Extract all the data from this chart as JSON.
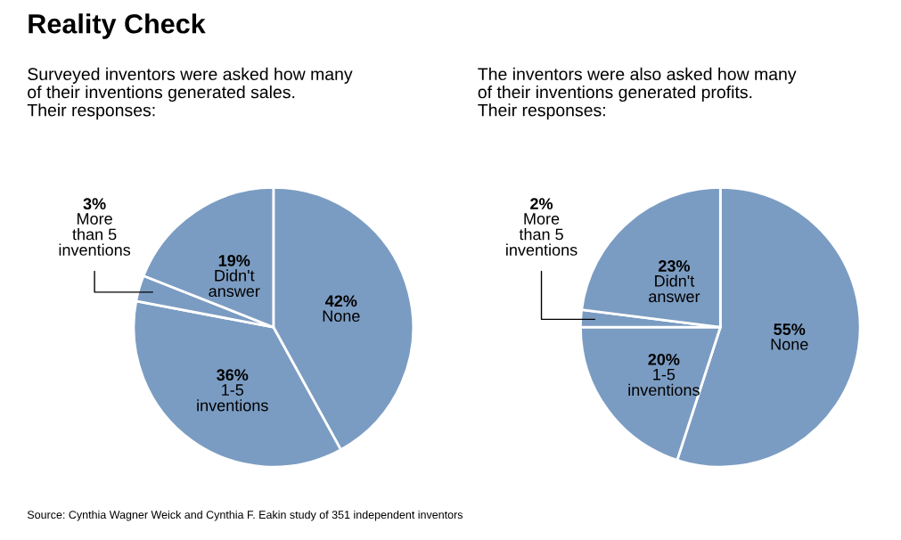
{
  "chart_data": [
    {
      "type": "pie",
      "title": "Reality Check",
      "subtitle": "Surveyed inventors were asked how many\nof their inventions generated sales.\nTheir responses:",
      "categories": [
        "None",
        "1-5\ninventions",
        "More\nthan 5\ninventions",
        "Didn't\nanswer"
      ],
      "values": [
        42,
        36,
        3,
        19
      ],
      "value_labels": [
        "42%",
        "36%",
        "3%",
        "19%"
      ],
      "colors": [
        "#7b9cc2",
        "#7b9cc2",
        "#7b9cc2",
        "#7b9cc2"
      ],
      "annotations": [
        "Source: Cynthia Wagner Weick and Cynthia F. Eakin study of 351 independent inventors"
      ]
    },
    {
      "type": "pie",
      "subtitle": "The inventors were also asked how many\nof their inventions generated profits.\nTheir responses:",
      "categories": [
        "None",
        "1-5\ninventions",
        "More\nthan 5\ninventions",
        "Didn't\nanswer"
      ],
      "values": [
        55,
        20,
        2,
        23
      ],
      "value_labels": [
        "55%",
        "20%",
        "2%",
        "23%"
      ],
      "colors": [
        "#7b9cc2",
        "#7b9cc2",
        "#7b9cc2",
        "#7b9cc2"
      ]
    }
  ]
}
